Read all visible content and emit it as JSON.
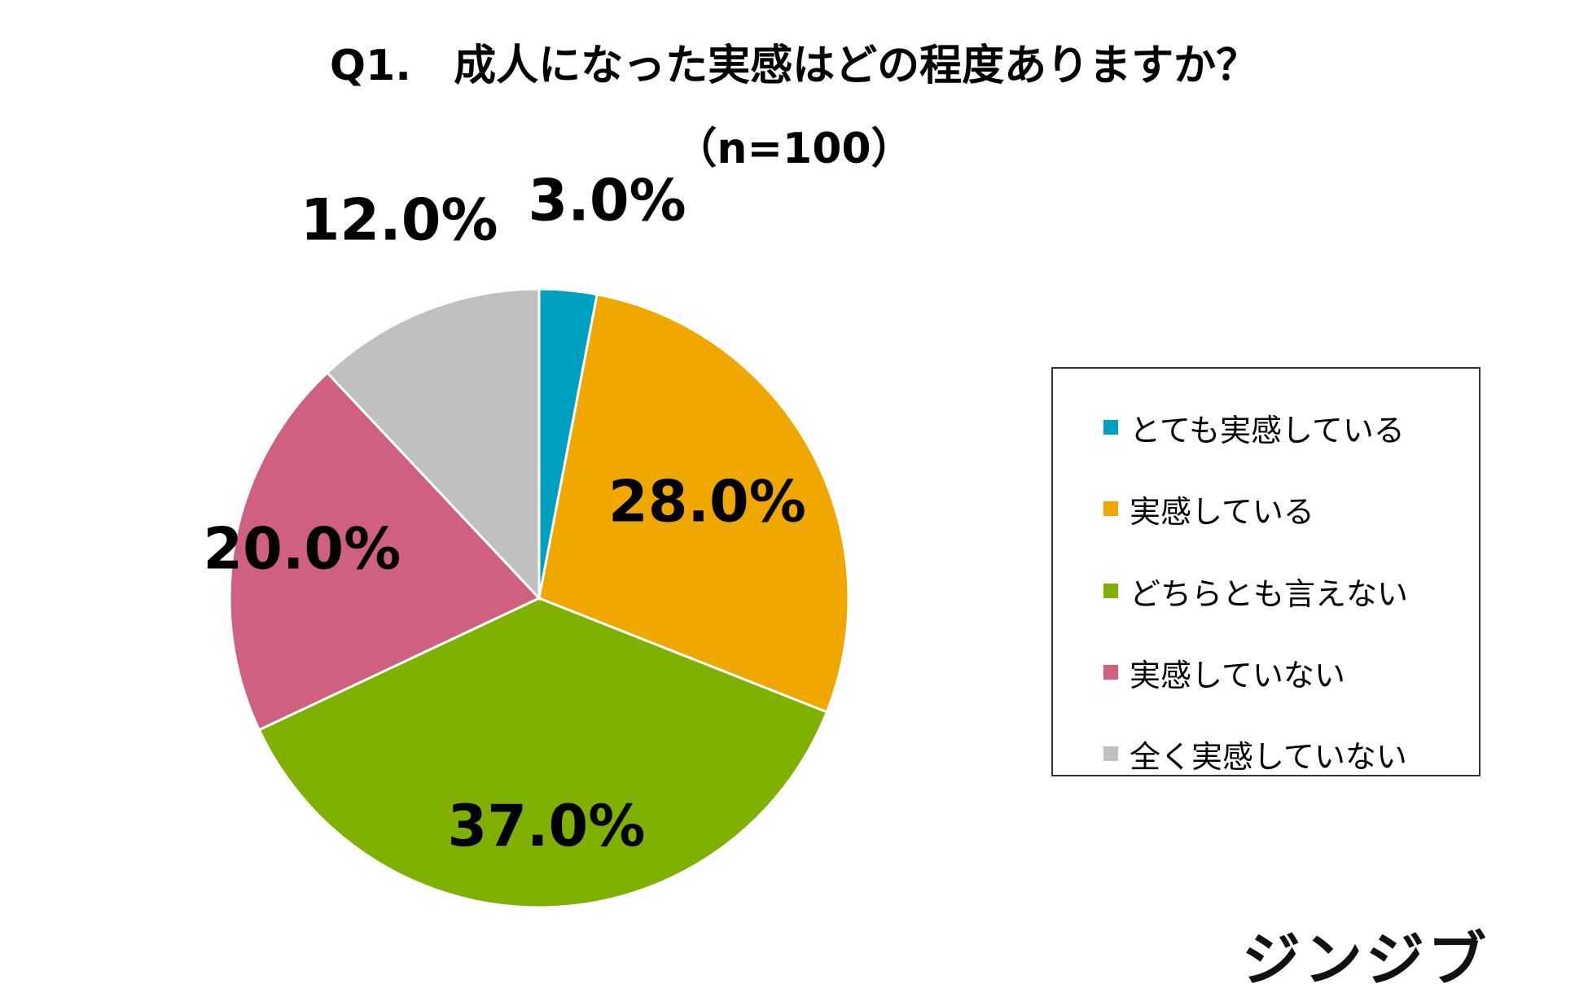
{
  "title": "Q1.　成人になった実感はどの程度ありますか？",
  "subtitle": "（n=100）",
  "brand": "ジンジブ",
  "chart_data": {
    "type": "pie",
    "title": "Q1.　成人になった実感はどの程度ありますか？",
    "subtitle": "（n=100）",
    "categories": [
      "とても実感している",
      "実感している",
      "どちらとも言えない",
      "実感していない",
      "全く実感していない"
    ],
    "values": [
      3.0,
      28.0,
      37.0,
      20.0,
      12.0
    ],
    "labels": [
      "3.0%",
      "28.0%",
      "37.0%",
      "20.0%",
      "12.0%"
    ],
    "colors": [
      "#00A0C0",
      "#F0A800",
      "#80B000",
      "#D06080",
      "#C0C0C0"
    ],
    "start": "12 o'clock",
    "direction": "clockwise",
    "legend_position": "right"
  }
}
